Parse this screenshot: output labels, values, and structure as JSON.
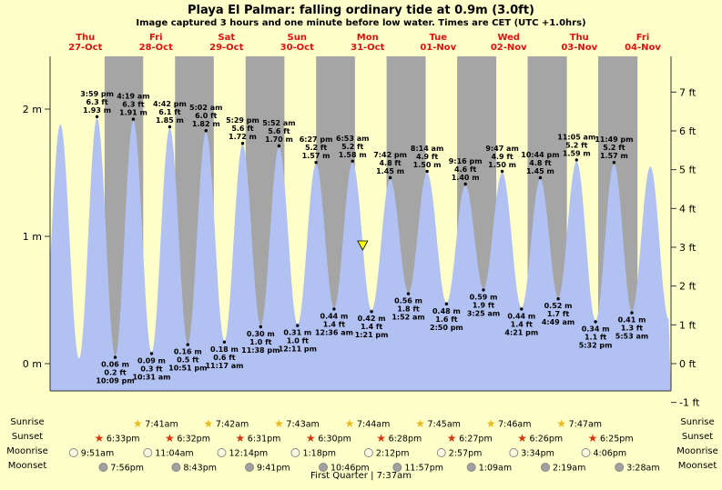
{
  "chart_data": {
    "type": "area",
    "title": "Playa El Palmar: falling ordinary tide at 0.9m (3.0ft)",
    "subtitle": "Image captured 3 hours and one minute before low water. Times are CET (UTC +1.0hrs)",
    "units": {
      "left": "m",
      "right": "ft"
    },
    "tide_events": [
      {
        "kind": "high",
        "day": 0,
        "time": "3:59 pm",
        "ft": "6.3 ft",
        "m": "1.93 m"
      },
      {
        "kind": "low",
        "day": 0,
        "time": "10:09 pm",
        "ft": "0.2 ft",
        "m": "0.06 m"
      },
      {
        "kind": "high",
        "day": 1,
        "time": "4:19 am",
        "ft": "6.3 ft",
        "m": "1.91 m"
      },
      {
        "kind": "low",
        "day": 1,
        "time": "10:31 am",
        "ft": "0.3 ft",
        "m": "0.09 m"
      },
      {
        "kind": "high",
        "day": 1,
        "time": "4:42 pm",
        "ft": "6.1 ft",
        "m": "1.85 m"
      },
      {
        "kind": "low",
        "day": 1,
        "time": "10:51 pm",
        "ft": "0.5 ft",
        "m": "0.16 m"
      },
      {
        "kind": "high",
        "day": 2,
        "time": "5:02 am",
        "ft": "6.0 ft",
        "m": "1.82 m"
      },
      {
        "kind": "low",
        "day": 2,
        "time": "11:17 am",
        "ft": "0.6 ft",
        "m": "0.18 m"
      },
      {
        "kind": "high",
        "day": 2,
        "time": "5:29 pm",
        "ft": "5.6 ft",
        "m": "1.72 m"
      },
      {
        "kind": "low",
        "day": 2,
        "time": "11:38 pm",
        "ft": "1.0 ft",
        "m": "0.30 m"
      },
      {
        "kind": "high",
        "day": 3,
        "time": "5:52 am",
        "ft": "5.6 ft",
        "m": "1.70 m"
      },
      {
        "kind": "low",
        "day": 3,
        "time": "12:11 pm",
        "ft": "1.0 ft",
        "m": "0.31 m"
      },
      {
        "kind": "high",
        "day": 3,
        "time": "6:27 pm",
        "ft": "5.2 ft",
        "m": "1.57 m"
      },
      {
        "kind": "low",
        "day": 4,
        "time": "12:36 am",
        "ft": "1.4 ft",
        "m": "0.44 m"
      },
      {
        "kind": "high",
        "day": 4,
        "time": "6:53 am",
        "ft": "5.2 ft",
        "m": "1.58 m"
      },
      {
        "kind": "low",
        "day": 4,
        "time": "1:21 pm",
        "ft": "1.4 ft",
        "m": "0.42 m"
      },
      {
        "kind": "high",
        "day": 4,
        "time": "7:42 pm",
        "ft": "4.8 ft",
        "m": "1.45 m"
      },
      {
        "kind": "low",
        "day": 5,
        "time": "1:52 am",
        "ft": "1.8 ft",
        "m": "0.56 m"
      },
      {
        "kind": "high",
        "day": 5,
        "time": "8:14 am",
        "ft": "4.9 ft",
        "m": "1.50 m"
      },
      {
        "kind": "low",
        "day": 5,
        "time": "2:50 pm",
        "ft": "1.6 ft",
        "m": "0.48 m"
      },
      {
        "kind": "high",
        "day": 5,
        "time": "9:16 pm",
        "ft": "4.6 ft",
        "m": "1.40 m"
      },
      {
        "kind": "low",
        "day": 6,
        "time": "3:25 am",
        "ft": "1.9 ft",
        "m": "0.59 m"
      },
      {
        "kind": "high",
        "day": 6,
        "time": "9:47 am",
        "ft": "4.9 ft",
        "m": "1.50 m"
      },
      {
        "kind": "low",
        "day": 6,
        "time": "4:21 pm",
        "ft": "1.4 ft",
        "m": "0.44 m"
      },
      {
        "kind": "high",
        "day": 6,
        "time": "10:44 pm",
        "ft": "4.8 ft",
        "m": "1.45 m"
      },
      {
        "kind": "low",
        "day": 7,
        "time": "4:49 am",
        "ft": "1.7 ft",
        "m": "0.52 m"
      },
      {
        "kind": "high",
        "day": 7,
        "time": "11:05 am",
        "ft": "5.2 ft",
        "m": "1.59 m"
      },
      {
        "kind": "low",
        "day": 7,
        "time": "5:32 pm",
        "ft": "1.1 ft",
        "m": "0.34 m"
      },
      {
        "kind": "high",
        "day": 7,
        "time": "11:49 pm",
        "ft": "5.2 ft",
        "m": "1.57 m"
      },
      {
        "kind": "low",
        "day": 8,
        "time": "5:53 am",
        "ft": "1.3 ft",
        "m": "0.41 m"
      }
    ],
    "edge_events": [
      {
        "kind": "low",
        "day": 0,
        "t_hours": -2.6,
        "height_m": 0.1
      },
      {
        "kind": "high",
        "day": 0,
        "t_hours": 3.5,
        "height_m": 1.88
      },
      {
        "kind": "low",
        "day": 0,
        "t_hours": 9.85,
        "height_m": 0.04
      },
      {
        "kind": "high",
        "day": 8,
        "t_hours": 12.17,
        "height_m": 1.55
      },
      {
        "kind": "low",
        "day": 8,
        "t_hours": 18.4,
        "height_m": 0.35
      }
    ],
    "current_marker": {
      "day": 4,
      "t_hours": 10.33,
      "height_m": 0.9
    }
  },
  "days": [
    {
      "dow": "Thu",
      "date": "27-Oct"
    },
    {
      "dow": "Fri",
      "date": "28-Oct"
    },
    {
      "dow": "Sat",
      "date": "29-Oct"
    },
    {
      "dow": "Sun",
      "date": "30-Oct"
    },
    {
      "dow": "Mon",
      "date": "31-Oct"
    },
    {
      "dow": "Tue",
      "date": "01-Nov"
    },
    {
      "dow": "Wed",
      "date": "02-Nov"
    },
    {
      "dow": "Thu",
      "date": "03-Nov"
    },
    {
      "dow": "Fri",
      "date": "04-Nov"
    }
  ],
  "axes": {
    "left_labels": [
      {
        "text": "2 m",
        "value_m": 2
      },
      {
        "text": "1 m",
        "value_m": 1
      },
      {
        "text": "0 m",
        "value_m": 0
      }
    ],
    "right_labels": [
      {
        "text": "7 ft",
        "value_ft": 7
      },
      {
        "text": "6 ft",
        "value_ft": 6
      },
      {
        "text": "5 ft",
        "value_ft": 5
      },
      {
        "text": "4 ft",
        "value_ft": 4
      },
      {
        "text": "3 ft",
        "value_ft": 3
      },
      {
        "text": "2 ft",
        "value_ft": 2
      },
      {
        "text": "1 ft",
        "value_ft": 1
      },
      {
        "text": "0 ft",
        "value_ft": 0
      },
      {
        "text": "-1 ft",
        "value_ft": -1
      }
    ]
  },
  "sun_moon": {
    "rows": [
      {
        "label": "Sunrise",
        "icon": "star",
        "icon_color": "#eab91e",
        "entries": [
          {
            "day": 1,
            "time": "7:41am"
          },
          {
            "day": 2,
            "time": "7:42am"
          },
          {
            "day": 3,
            "time": "7:43am"
          },
          {
            "day": 4,
            "time": "7:44am"
          },
          {
            "day": 5,
            "time": "7:45am"
          },
          {
            "day": 6,
            "time": "7:46am"
          },
          {
            "day": 7,
            "time": "7:47am"
          }
        ]
      },
      {
        "label": "Sunset",
        "icon": "star",
        "icon_color": "#d8350f",
        "entries": [
          {
            "day": 0,
            "time": "6:33pm"
          },
          {
            "day": 1,
            "time": "6:32pm"
          },
          {
            "day": 2,
            "time": "6:31pm"
          },
          {
            "day": 3,
            "time": "6:30pm"
          },
          {
            "day": 4,
            "time": "6:28pm"
          },
          {
            "day": 5,
            "time": "6:27pm"
          },
          {
            "day": 6,
            "time": "6:26pm"
          },
          {
            "day": 7,
            "time": "6:25pm"
          }
        ]
      },
      {
        "label": "Moonrise",
        "icon": "moon",
        "icon_color": "#fffbe2",
        "entries": [
          {
            "day": 0,
            "time": "9:51am"
          },
          {
            "day": 1,
            "time": "11:04am"
          },
          {
            "day": 2,
            "time": "12:14pm"
          },
          {
            "day": 3,
            "time": "1:18pm"
          },
          {
            "day": 4,
            "time": "2:12pm"
          },
          {
            "day": 5,
            "time": "2:57pm"
          },
          {
            "day": 6,
            "time": "3:34pm"
          },
          {
            "day": 7,
            "time": "4:06pm"
          }
        ]
      },
      {
        "label": "Moonset",
        "icon": "moon",
        "icon_color": "#a0a0a0",
        "entries": [
          {
            "day": 0,
            "time": "7:56pm"
          },
          {
            "day": 1,
            "time": "8:43pm"
          },
          {
            "day": 2,
            "time": "9:41pm"
          },
          {
            "day": 3,
            "time": "10:46pm"
          },
          {
            "day": 4,
            "time": "11:57pm"
          },
          {
            "day": 6,
            "time": "1:09am"
          },
          {
            "day": 7,
            "time": "2:19am"
          },
          {
            "day": 8,
            "time": "3:28am"
          }
        ]
      }
    ],
    "footer": "First Quarter | 7:37am"
  },
  "colors": {
    "background": "#ffffc9",
    "night_band": "#a5a5a5",
    "tide_fill": "#b1c1f2",
    "day_label": "#e01010",
    "marker": "#ffff00",
    "axis": "#333333"
  }
}
